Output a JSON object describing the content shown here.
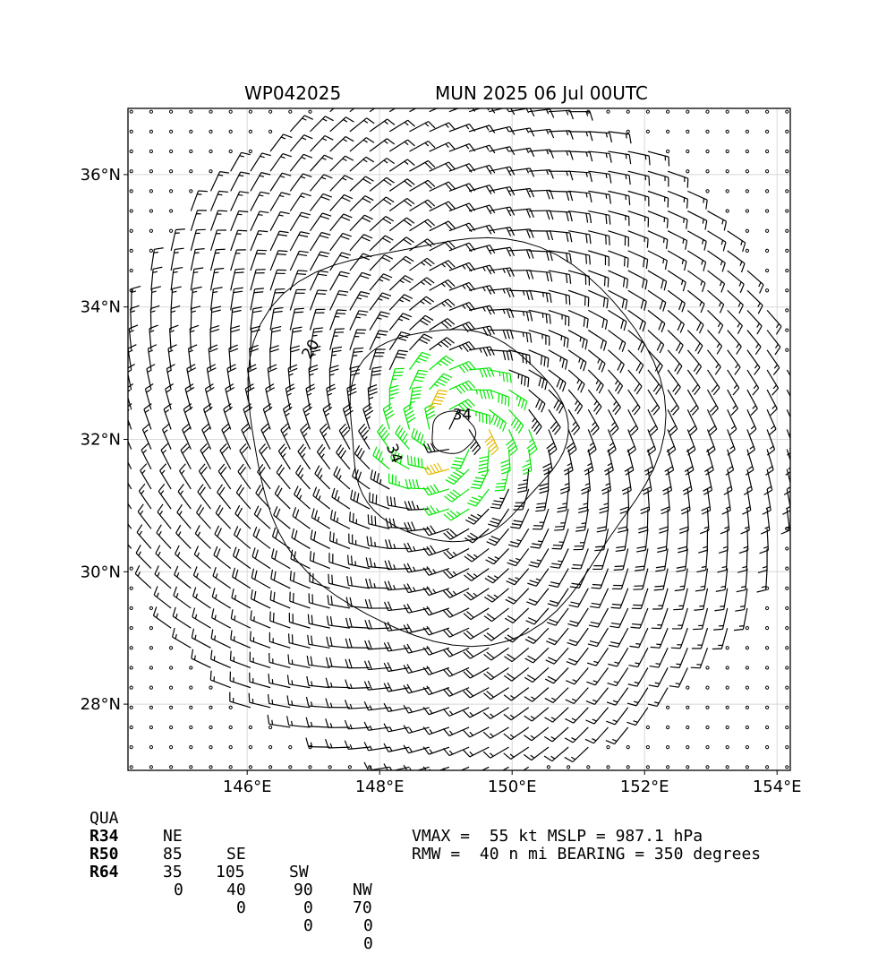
{
  "header": {
    "storm_id": "WP042025",
    "title": "MUN 2025 06 Jul 00UTC"
  },
  "chart_data": {
    "type": "wind-barb-map",
    "xlim": [
      144.2,
      154.2
    ],
    "ylim": [
      27.0,
      37.0
    ],
    "x_ticks": [
      146,
      148,
      150,
      152,
      154
    ],
    "x_tick_labels": [
      "146°E",
      "148°E",
      "150°E",
      "152°E",
      "154°E"
    ],
    "y_ticks": [
      28,
      30,
      32,
      34,
      36
    ],
    "y_tick_labels": [
      "28°N",
      "30°N",
      "32°N",
      "34°N",
      "36°N"
    ],
    "grid": true,
    "center": {
      "lon": 149.1,
      "lat": 32.1
    },
    "contours": [
      {
        "level": 20,
        "label": "20",
        "radius_deg": 3.05
      },
      {
        "level": 34,
        "label": "34",
        "radius_deg": 1.6
      },
      {
        "level": 34,
        "label": "34",
        "radius_deg": 0.32
      }
    ],
    "wind_colors": {
      "below_34": "#000000",
      "34_to_50": "#00e600",
      "50_to_64": "#e6b800",
      "above_64": "#ff4500"
    },
    "vmax_kt": 55,
    "mslp_hpa": 987.1,
    "rmw_nmi": 40,
    "bearing_deg": 350
  },
  "radii_table": {
    "headers": [
      "QUA",
      "NE",
      "SE",
      "SW",
      "NW"
    ],
    "rows": [
      {
        "label": "R34",
        "values": [
          "85",
          "105",
          "90",
          "70"
        ]
      },
      {
        "label": "R50",
        "values": [
          "35",
          "40",
          "0",
          "0"
        ]
      },
      {
        "label": "R64",
        "values": [
          "0",
          "0",
          "0",
          "0"
        ]
      }
    ]
  },
  "info": {
    "line1": "VMAX =  55 kt MSLP = 987.1 hPa",
    "line2": "RMW =  40 n mi BEARING = 350 degrees"
  }
}
